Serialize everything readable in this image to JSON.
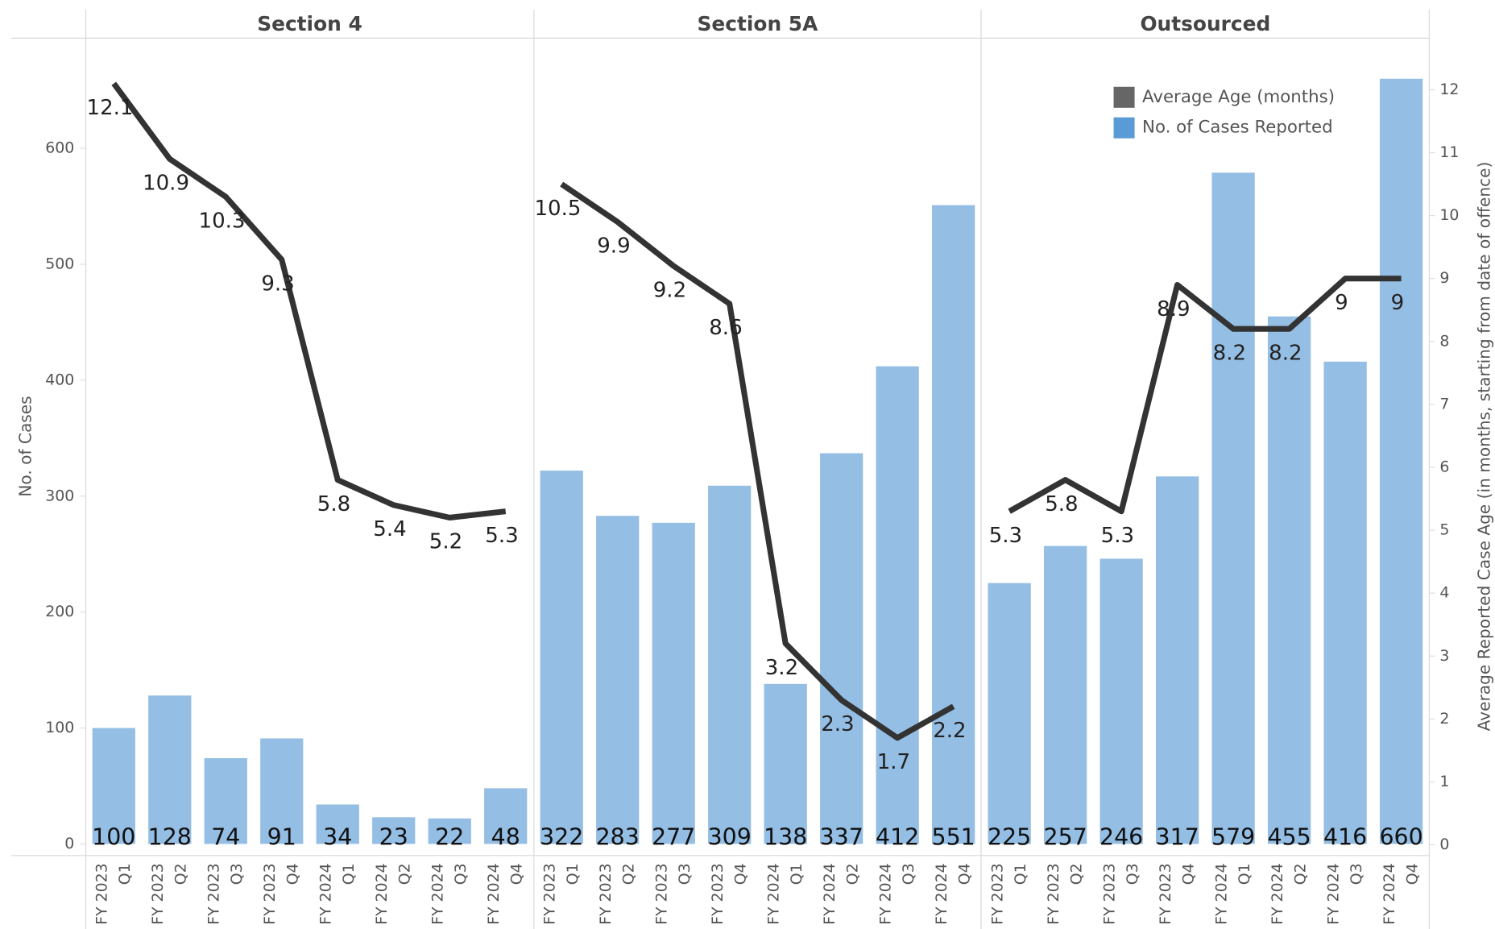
{
  "chart_data": [
    {
      "type": "bar-line",
      "title": "Section 4",
      "ylabel": "No. of Cases",
      "categories": [
        [
          "FY 2023",
          "Q1"
        ],
        [
          "FY 2023",
          "Q2"
        ],
        [
          "FY 2023",
          "Q3"
        ],
        [
          "FY 2023",
          "Q4"
        ],
        [
          "FY 2024",
          "Q1"
        ],
        [
          "FY 2024",
          "Q2"
        ],
        [
          "FY 2024",
          "Q3"
        ],
        [
          "FY 2024",
          "Q4"
        ]
      ],
      "series": [
        {
          "name": "No. of Cases Reported",
          "color": "#5b9bd5",
          "values": [
            100,
            128,
            74,
            91,
            34,
            23,
            22,
            48
          ]
        },
        {
          "name": "Average Age (months)",
          "color": "#333333",
          "axis": "y2",
          "values": [
            12.1,
            10.9,
            10.3,
            9.3,
            5.8,
            5.4,
            5.2,
            5.3
          ]
        }
      ],
      "ylim": [
        -10,
        695
      ],
      "yticks": [
        0,
        100,
        200,
        300,
        400,
        500,
        600
      ],
      "y2lim": [
        -0.17,
        12.82
      ]
    },
    {
      "type": "bar-line",
      "title": "Section 5A",
      "categories": [
        [
          "FY 2023",
          "Q1"
        ],
        [
          "FY 2023",
          "Q2"
        ],
        [
          "FY 2023",
          "Q3"
        ],
        [
          "FY 2023",
          "Q4"
        ],
        [
          "FY 2024",
          "Q1"
        ],
        [
          "FY 2024",
          "Q2"
        ],
        [
          "FY 2024",
          "Q3"
        ],
        [
          "FY 2024",
          "Q4"
        ]
      ],
      "series": [
        {
          "name": "No. of Cases Reported",
          "color": "#5b9bd5",
          "values": [
            322,
            283,
            277,
            309,
            138,
            337,
            412,
            551
          ]
        },
        {
          "name": "Average Age (months)",
          "color": "#333333",
          "axis": "y2",
          "values": [
            10.5,
            9.9,
            9.2,
            8.6,
            3.2,
            2.3,
            1.7,
            2.2
          ]
        }
      ],
      "ylim": [
        -10,
        695
      ],
      "y2lim": [
        -0.17,
        12.82
      ]
    },
    {
      "type": "bar-line",
      "title": "Outsourced",
      "y2label": "Average Reported Case Age (in months, starting from date of offence)",
      "categories": [
        [
          "FY 2023",
          "Q1"
        ],
        [
          "FY 2023",
          "Q2"
        ],
        [
          "FY 2023",
          "Q3"
        ],
        [
          "FY 2023",
          "Q4"
        ],
        [
          "FY 2024",
          "Q1"
        ],
        [
          "FY 2024",
          "Q2"
        ],
        [
          "FY 2024",
          "Q3"
        ],
        [
          "FY 2024",
          "Q4"
        ]
      ],
      "series": [
        {
          "name": "No. of Cases Reported",
          "color": "#5b9bd5",
          "values": [
            225,
            257,
            246,
            317,
            579,
            455,
            416,
            660
          ]
        },
        {
          "name": "Average Age (months)",
          "color": "#333333",
          "axis": "y2",
          "values": [
            5.3,
            5.8,
            5.3,
            8.9,
            8.2,
            8.2,
            9.0,
            9.0
          ]
        }
      ],
      "ylim": [
        -10,
        695
      ],
      "y2lim": [
        -0.17,
        12.82
      ],
      "y2ticks": [
        0,
        1,
        2,
        3,
        4,
        5,
        6,
        7,
        8,
        9,
        10,
        11,
        12
      ],
      "legend": "top-right"
    }
  ]
}
